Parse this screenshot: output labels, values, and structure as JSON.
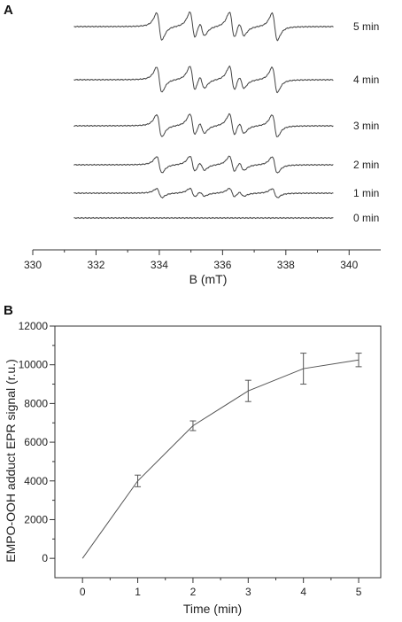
{
  "chart_data": [
    {
      "panel": "A",
      "type": "line",
      "xlabel": "B (mT)",
      "xlim": [
        330,
        341
      ],
      "xticks": [
        "330",
        "332",
        "334",
        "336",
        "338",
        "340"
      ],
      "series": [
        {
          "name": "5 min",
          "amplitude": 1.0
        },
        {
          "name": "4 min",
          "amplitude": 0.93
        },
        {
          "name": "3 min",
          "amplitude": 0.82
        },
        {
          "name": "2 min",
          "amplitude": 0.6
        },
        {
          "name": "1 min",
          "amplitude": 0.33
        },
        {
          "name": "0 min",
          "amplitude": 0.0
        }
      ],
      "peaks_mT": [
        334.0,
        335.05,
        335.35,
        336.3,
        336.6,
        337.65
      ]
    },
    {
      "panel": "B",
      "type": "line",
      "xlabel": "Time (min)",
      "ylabel": "EMPO-OOH adduct EPR signal (r.u.)",
      "xlim": [
        -0.5,
        5.4
      ],
      "ylim": [
        -1000,
        12000
      ],
      "xticks": [
        "0",
        "1",
        "2",
        "3",
        "4",
        "5"
      ],
      "yticks": [
        "0",
        "2000",
        "4000",
        "6000",
        "8000",
        "10000",
        "12000"
      ],
      "x": [
        0,
        1,
        2,
        3,
        4,
        5
      ],
      "y": [
        0,
        4000,
        6850,
        8650,
        9800,
        10250
      ],
      "err": [
        0,
        300,
        250,
        550,
        800,
        350
      ]
    }
  ]
}
